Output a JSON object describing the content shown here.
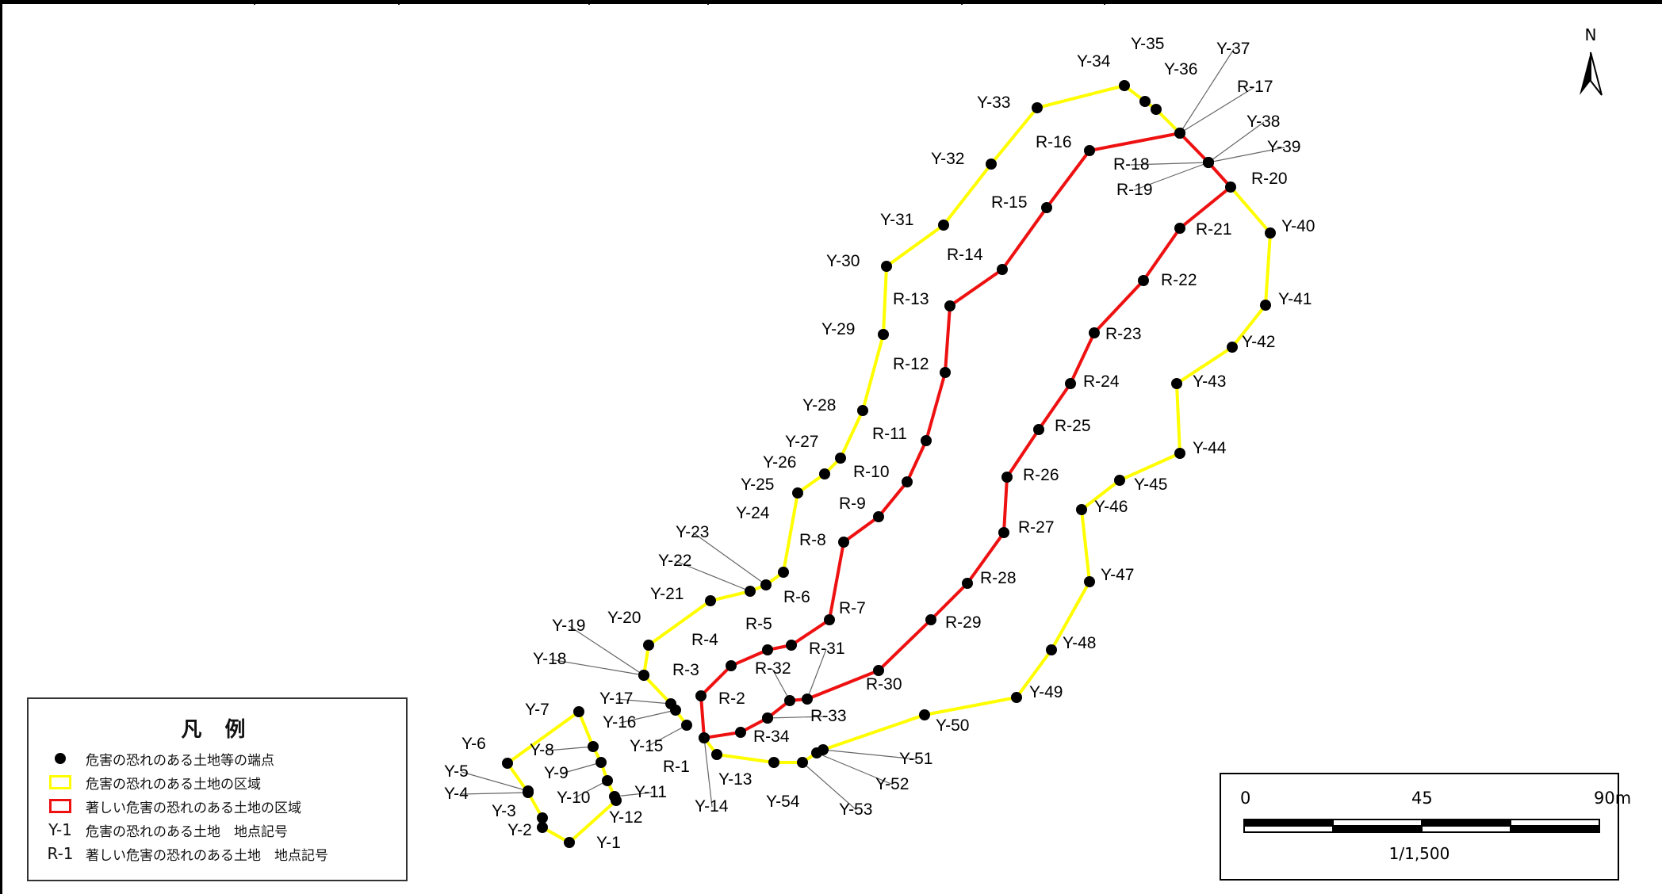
{
  "legend": {
    "title": "凡 例",
    "endpoint": "危害の恐れのある土地等の端点",
    "yellow_area": "危害の恐れのある土地の区域",
    "red_area": "著しい危害の恐れのある土地の区域",
    "y_code": "Y-1",
    "y_label": "危害の恐れのある土地　地点記号",
    "r_code": "R-1",
    "r_label": "著しい危害の恐れのある土地　地点記号"
  },
  "scale_bar": {
    "label_0": "0",
    "label_mid": "45",
    "label_end": "90m",
    "ratio": "1/1,500"
  },
  "north_arrow": {
    "label": "N"
  },
  "colors": {
    "yellow_line": "#ffff00",
    "red_line": "#ee1111",
    "point": "#000000",
    "leader": "#666666"
  }
}
